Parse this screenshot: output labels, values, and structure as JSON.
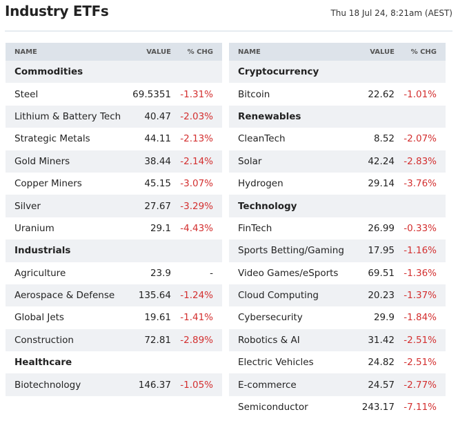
{
  "header": {
    "title": "Industry ETFs",
    "timestamp": "Thu 18 Jul 24, 8:21am (AEST)"
  },
  "tables": [
    {
      "columns": [
        "NAME",
        "VALUE",
        "% CHG"
      ],
      "groups": [
        {
          "name": "Commodities",
          "rows": [
            {
              "name": "Steel",
              "value": 69.5351,
              "change": "-1.31%"
            },
            {
              "name": "Lithium & Battery Tech",
              "value": 40.47,
              "change": "-2.03%"
            },
            {
              "name": "Strategic Metals",
              "value": 44.11,
              "change": "-2.13%"
            },
            {
              "name": "Gold Miners",
              "value": 38.44,
              "change": "-2.14%"
            },
            {
              "name": "Copper Miners",
              "value": 45.15,
              "change": "-3.07%"
            },
            {
              "name": "Silver",
              "value": 27.67,
              "change": "-3.29%"
            },
            {
              "name": "Uranium",
              "value": 29.1,
              "change": "-4.43%"
            }
          ]
        },
        {
          "name": "Industrials",
          "rows": [
            {
              "name": "Agriculture",
              "value": 23.9,
              "change": "-"
            },
            {
              "name": "Aerospace & Defense",
              "value": 135.64,
              "change": "-1.24%"
            },
            {
              "name": "Global Jets",
              "value": 19.61,
              "change": "-1.41%"
            },
            {
              "name": "Construction",
              "value": 72.81,
              "change": "-2.89%"
            }
          ]
        },
        {
          "name": "Healthcare",
          "rows": [
            {
              "name": "Biotechnology",
              "value": 146.37,
              "change": "-1.05%"
            }
          ]
        }
      ]
    },
    {
      "columns": [
        "NAME",
        "VALUE",
        "% CHG"
      ],
      "groups": [
        {
          "name": "Cryptocurrency",
          "rows": [
            {
              "name": "Bitcoin",
              "value": 22.62,
              "change": "-1.01%"
            }
          ]
        },
        {
          "name": "Renewables",
          "rows": [
            {
              "name": "CleanTech",
              "value": 8.52,
              "change": "-2.07%"
            },
            {
              "name": "Solar",
              "value": 42.24,
              "change": "-2.83%"
            },
            {
              "name": "Hydrogen",
              "value": 29.14,
              "change": "-3.76%"
            }
          ]
        },
        {
          "name": "Technology",
          "rows": [
            {
              "name": "FinTech",
              "value": 26.99,
              "change": "-0.33%"
            },
            {
              "name": "Sports Betting/Gaming",
              "value": 17.95,
              "change": "-1.16%"
            },
            {
              "name": "Video Games/eSports",
              "value": 69.51,
              "change": "-1.36%"
            },
            {
              "name": "Cloud Computing",
              "value": 20.23,
              "change": "-1.37%"
            },
            {
              "name": "Cybersecurity",
              "value": 29.9,
              "change": "-1.84%"
            },
            {
              "name": "Robotics & AI",
              "value": 31.42,
              "change": "-2.51%"
            },
            {
              "name": "Electric Vehicles",
              "value": 24.82,
              "change": "-2.51%"
            },
            {
              "name": "E-commerce",
              "value": 24.57,
              "change": "-2.77%"
            },
            {
              "name": "Semiconductor",
              "value": 243.17,
              "change": "-7.11%"
            }
          ]
        }
      ]
    }
  ]
}
